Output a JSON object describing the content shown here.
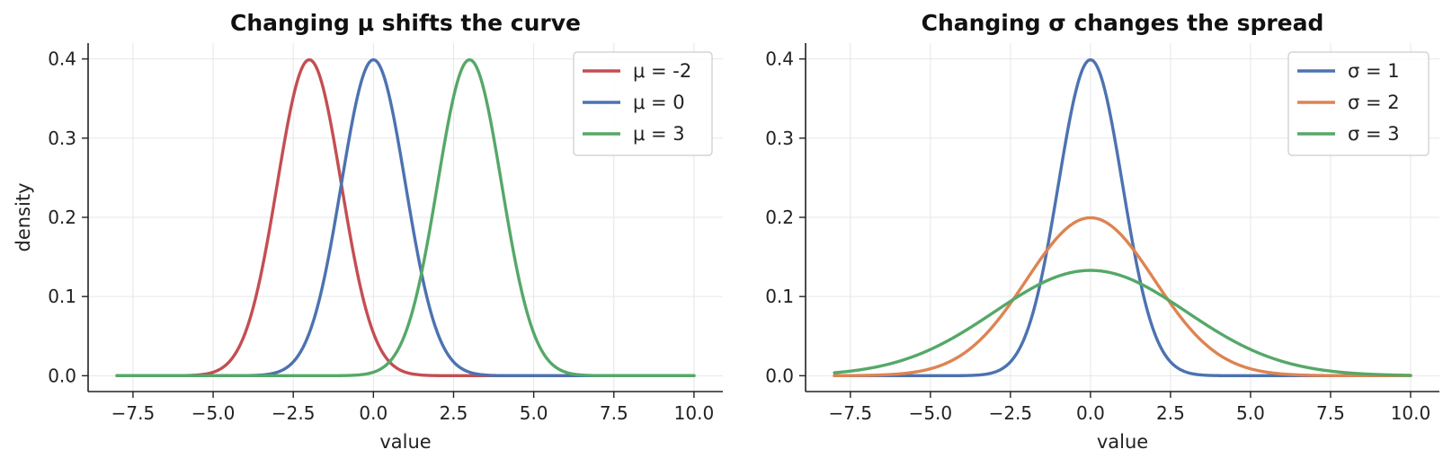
{
  "chart_data": [
    {
      "type": "line",
      "title": "Changing μ shifts the curve",
      "xlabel": "value",
      "ylabel": "density",
      "xlim": [
        -8.9,
        10.9
      ],
      "ylim": [
        -0.02,
        0.42
      ],
      "xticks": [
        -7.5,
        -5.0,
        -2.5,
        0.0,
        2.5,
        5.0,
        7.5,
        10.0
      ],
      "xtick_labels": [
        "−7.5",
        "−5.0",
        "−2.5",
        "0.0",
        "2.5",
        "5.0",
        "7.5",
        "10.0"
      ],
      "yticks": [
        0.0,
        0.1,
        0.2,
        0.3,
        0.4
      ],
      "ytick_labels": [
        "0.0",
        "0.1",
        "0.2",
        "0.3",
        "0.4"
      ],
      "x_range": [
        -8,
        10
      ],
      "grid": true,
      "legend_position": "top-right",
      "curve": "normal pdf",
      "series": [
        {
          "name": "μ = -2",
          "mu": -2,
          "sigma": 1,
          "color": "#c44e52"
        },
        {
          "name": "μ = 0",
          "mu": 0,
          "sigma": 1,
          "color": "#4c72b0"
        },
        {
          "name": "μ = 3",
          "mu": 3,
          "sigma": 1,
          "color": "#55a868"
        }
      ]
    },
    {
      "type": "line",
      "title": "Changing σ changes the spread",
      "xlabel": "value",
      "ylabel": "",
      "xlim": [
        -8.9,
        10.9
      ],
      "ylim": [
        -0.02,
        0.42
      ],
      "xticks": [
        -7.5,
        -5.0,
        -2.5,
        0.0,
        2.5,
        5.0,
        7.5,
        10.0
      ],
      "xtick_labels": [
        "−7.5",
        "−5.0",
        "−2.5",
        "0.0",
        "2.5",
        "5.0",
        "7.5",
        "10.0"
      ],
      "yticks": [
        0.0,
        0.1,
        0.2,
        0.3,
        0.4
      ],
      "ytick_labels": [
        "0.0",
        "0.1",
        "0.2",
        "0.3",
        "0.4"
      ],
      "x_range": [
        -8,
        10
      ],
      "grid": true,
      "legend_position": "top-right",
      "curve": "normal pdf",
      "series": [
        {
          "name": "σ = 1",
          "mu": 0,
          "sigma": 1,
          "color": "#4c72b0"
        },
        {
          "name": "σ = 2",
          "mu": 0,
          "sigma": 2,
          "color": "#dd8452"
        },
        {
          "name": "σ = 3",
          "mu": 0,
          "sigma": 3,
          "color": "#55a868"
        }
      ]
    }
  ]
}
